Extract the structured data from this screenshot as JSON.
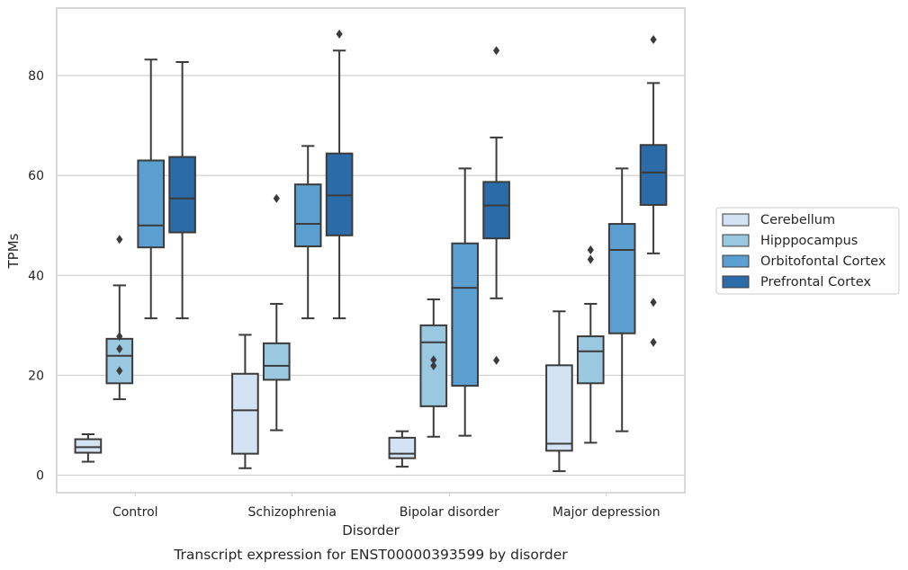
{
  "chart_data": {
    "type": "box",
    "xlabel": "Disorder",
    "ylabel": "TPMs",
    "caption": "Transcript expression for ENST00000393599 by disorder",
    "ylim": [
      -3.5,
      93.5
    ],
    "yticks": [
      0,
      20,
      40,
      60,
      80
    ],
    "grid": true,
    "legend_position": "right",
    "categories": [
      "Control",
      "Schizophrenia",
      "Bipolar disorder",
      "Major depression"
    ],
    "series": [
      {
        "name": "Cerebellum",
        "color": "#d3e3f3",
        "boxes": [
          {
            "whisker_low": 2.7,
            "q1": 4.5,
            "median": 5.6,
            "q3": 7.2,
            "whisker_high": 8.2,
            "outliers": []
          },
          {
            "whisker_low": 1.4,
            "q1": 4.3,
            "median": 13.0,
            "q3": 20.3,
            "whisker_high": 28.1,
            "outliers": []
          },
          {
            "whisker_low": 1.7,
            "q1": 3.4,
            "median": 4.3,
            "q3": 7.5,
            "whisker_high": 8.8,
            "outliers": []
          },
          {
            "whisker_low": 0.8,
            "q1": 4.9,
            "median": 6.3,
            "q3": 22.0,
            "whisker_high": 32.8,
            "outliers": []
          }
        ]
      },
      {
        "name": "Hipppocampus",
        "color": "#9ac8e0",
        "boxes": [
          {
            "whisker_low": 15.2,
            "q1": 18.4,
            "median": 23.9,
            "q3": 27.3,
            "whisker_high": 38.0,
            "outliers": [
              20.9,
              25.3,
              27.8,
              47.2
            ]
          },
          {
            "whisker_low": 9.0,
            "q1": 19.1,
            "median": 21.9,
            "q3": 26.4,
            "whisker_high": 34.3,
            "outliers": [
              55.4
            ]
          },
          {
            "whisker_low": 7.7,
            "q1": 13.8,
            "median": 26.6,
            "q3": 30.0,
            "whisker_high": 35.2,
            "outliers": [
              21.9,
              23.1
            ]
          },
          {
            "whisker_low": 6.5,
            "q1": 18.4,
            "median": 24.8,
            "q3": 27.8,
            "whisker_high": 34.3,
            "outliers": [
              43.2,
              45.1
            ]
          }
        ]
      },
      {
        "name": "Orbitofontal Cortex",
        "color": "#5a9fcf",
        "boxes": [
          {
            "whisker_low": 31.4,
            "q1": 45.6,
            "median": 50.0,
            "q3": 63.0,
            "whisker_high": 83.2,
            "outliers": []
          },
          {
            "whisker_low": 31.4,
            "q1": 45.8,
            "median": 50.3,
            "q3": 58.2,
            "whisker_high": 65.9,
            "outliers": []
          },
          {
            "whisker_low": 7.9,
            "q1": 17.9,
            "median": 37.5,
            "q3": 46.4,
            "whisker_high": 61.4,
            "outliers": []
          },
          {
            "whisker_low": 8.8,
            "q1": 28.4,
            "median": 45.1,
            "q3": 50.3,
            "whisker_high": 61.4,
            "outliers": []
          }
        ]
      },
      {
        "name": "Prefrontal Cortex",
        "color": "#2b6ba8",
        "boxes": [
          {
            "whisker_low": 31.4,
            "q1": 48.6,
            "median": 55.4,
            "q3": 63.7,
            "whisker_high": 82.7,
            "outliers": []
          },
          {
            "whisker_low": 31.4,
            "q1": 48.0,
            "median": 56.0,
            "q3": 64.4,
            "whisker_high": 85.0,
            "outliers": [
              88.3
            ]
          },
          {
            "whisker_low": 35.4,
            "q1": 47.4,
            "median": 54.0,
            "q3": 58.7,
            "whisker_high": 67.6,
            "outliers": [
              23.0,
              85.0
            ]
          },
          {
            "whisker_low": 44.4,
            "q1": 54.1,
            "median": 60.6,
            "q3": 66.1,
            "whisker_high": 78.5,
            "outliers": [
              26.6,
              34.6,
              87.2
            ]
          }
        ]
      }
    ]
  }
}
